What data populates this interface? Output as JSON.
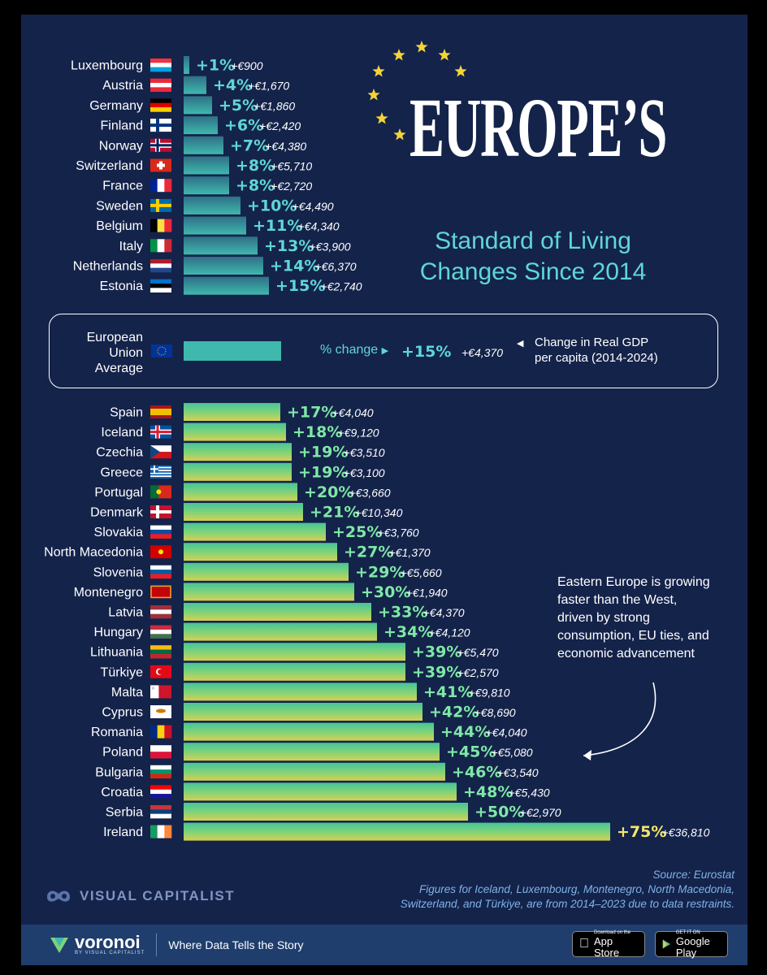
{
  "title": "EUROPE’S",
  "subtitle_line1": "Standard of Living",
  "subtitle_line2": "Changes Since 2014",
  "legend": {
    "pct_label": "% change",
    "desc_line1": "Change in Real GDP",
    "desc_line2": "per capita (2014-2024)"
  },
  "annotation": {
    "line1": "Eastern Europe is growing",
    "line2": "faster than the West,",
    "line3": "driven by strong",
    "line4": "consumption, EU ties, and",
    "line5": "economic advancement"
  },
  "source": {
    "line1": "Source: Eurostat",
    "line2": "Figures for Iceland, Luxembourg, Montenegro, North Macedonia,",
    "line3": "Switzerland, and Türkiye, are from 2014–2023 due to data restraints."
  },
  "brand": "VISUAL CAPITALIST",
  "footer": {
    "voronoi": "voronoi",
    "voronoi_sub": "BY VISUAL CAPITALIST",
    "tagline": "Where Data Tells the Story",
    "app_store_small": "Download on the",
    "app_store": "App Store",
    "google_small": "GET IT ON",
    "google": "Google Play"
  },
  "colors": {
    "background": "#14234a",
    "accent": "#5fd7d6",
    "pct_text": "#7ee8a6",
    "star": "#f2d43a"
  },
  "chart_data": {
    "type": "bar",
    "orientation": "horizontal",
    "measure": "% change",
    "secondary_measure": "Change in Real GDP per capita (2014-2024)",
    "eu_average": {
      "label_line1": "European",
      "label_line2": "Union",
      "label_line3": "Average",
      "pct": 15,
      "pct_label": "+15%",
      "abs_label": "+€4,370",
      "flag": "eu"
    },
    "rows": [
      {
        "country": "Luxembourg",
        "pct": 1,
        "pct_label": "+1%",
        "abs_label": "+€900",
        "flag": "lux"
      },
      {
        "country": "Austria",
        "pct": 4,
        "pct_label": "+4%",
        "abs_label": "+€1,670",
        "flag": "aut"
      },
      {
        "country": "Germany",
        "pct": 5,
        "pct_label": "+5%",
        "abs_label": "+€1,860",
        "flag": "deu"
      },
      {
        "country": "Finland",
        "pct": 6,
        "pct_label": "+6%",
        "abs_label": "+€2,420",
        "flag": "fin"
      },
      {
        "country": "Norway",
        "pct": 7,
        "pct_label": "+7%",
        "abs_label": "+€4,380",
        "flag": "nor"
      },
      {
        "country": "Switzerland",
        "pct": 8,
        "pct_label": "+8%",
        "abs_label": "+€5,710",
        "flag": "che"
      },
      {
        "country": "France",
        "pct": 8,
        "pct_label": "+8%",
        "abs_label": "+€2,720",
        "flag": "fra"
      },
      {
        "country": "Sweden",
        "pct": 10,
        "pct_label": "+10%",
        "abs_label": "+€4,490",
        "flag": "swe"
      },
      {
        "country": "Belgium",
        "pct": 11,
        "pct_label": "+11%",
        "abs_label": "+€4,340",
        "flag": "bel"
      },
      {
        "country": "Italy",
        "pct": 13,
        "pct_label": "+13%",
        "abs_label": "+€3,900",
        "flag": "ita"
      },
      {
        "country": "Netherlands",
        "pct": 14,
        "pct_label": "+14%",
        "abs_label": "+€6,370",
        "flag": "nld"
      },
      {
        "country": "Estonia",
        "pct": 15,
        "pct_label": "+15%",
        "abs_label": "+€2,740",
        "flag": "est"
      },
      {
        "country": "Spain",
        "pct": 17,
        "pct_label": "+17%",
        "abs_label": "+€4,040",
        "flag": "esp"
      },
      {
        "country": "Iceland",
        "pct": 18,
        "pct_label": "+18%",
        "abs_label": "+€9,120",
        "flag": "isl"
      },
      {
        "country": "Czechia",
        "pct": 19,
        "pct_label": "+19%",
        "abs_label": "+€3,510",
        "flag": "cze"
      },
      {
        "country": "Greece",
        "pct": 19,
        "pct_label": "+19%",
        "abs_label": "+€3,100",
        "flag": "grc"
      },
      {
        "country": "Portugal",
        "pct": 20,
        "pct_label": "+20%",
        "abs_label": "+€3,660",
        "flag": "prt"
      },
      {
        "country": "Denmark",
        "pct": 21,
        "pct_label": "+21%",
        "abs_label": "+€10,340",
        "flag": "dnk"
      },
      {
        "country": "Slovakia",
        "pct": 25,
        "pct_label": "+25%",
        "abs_label": "+€3,760",
        "flag": "svk"
      },
      {
        "country": "North Macedonia",
        "pct": 27,
        "pct_label": "+27%",
        "abs_label": "+€1,370",
        "flag": "mkd"
      },
      {
        "country": "Slovenia",
        "pct": 29,
        "pct_label": "+29%",
        "abs_label": "+€5,660",
        "flag": "svn"
      },
      {
        "country": "Montenegro",
        "pct": 30,
        "pct_label": "+30%",
        "abs_label": "+€1,940",
        "flag": "mne"
      },
      {
        "country": "Latvia",
        "pct": 33,
        "pct_label": "+33%",
        "abs_label": "+€4,370",
        "flag": "lva"
      },
      {
        "country": "Hungary",
        "pct": 34,
        "pct_label": "+34%",
        "abs_label": "+€4,120",
        "flag": "hun"
      },
      {
        "country": "Lithuania",
        "pct": 39,
        "pct_label": "+39%",
        "abs_label": "+€5,470",
        "flag": "ltu"
      },
      {
        "country": "Türkiye",
        "pct": 39,
        "pct_label": "+39%",
        "abs_label": "+€2,570",
        "flag": "tur"
      },
      {
        "country": "Malta",
        "pct": 41,
        "pct_label": "+41%",
        "abs_label": "+€9,810",
        "flag": "mlt"
      },
      {
        "country": "Cyprus",
        "pct": 42,
        "pct_label": "+42%",
        "abs_label": "+€8,690",
        "flag": "cyp"
      },
      {
        "country": "Romania",
        "pct": 44,
        "pct_label": "+44%",
        "abs_label": "+€4,040",
        "flag": "rou"
      },
      {
        "country": "Poland",
        "pct": 45,
        "pct_label": "+45%",
        "abs_label": "+€5,080",
        "flag": "pol"
      },
      {
        "country": "Bulgaria",
        "pct": 46,
        "pct_label": "+46%",
        "abs_label": "+€3,540",
        "flag": "bgr"
      },
      {
        "country": "Croatia",
        "pct": 48,
        "pct_label": "+48%",
        "abs_label": "+€5,430",
        "flag": "hrv"
      },
      {
        "country": "Serbia",
        "pct": 50,
        "pct_label": "+50%",
        "abs_label": "+€2,970",
        "flag": "srb"
      },
      {
        "country": "Ireland",
        "pct": 75,
        "pct_label": "+75%",
        "abs_label": "+€36,810",
        "flag": "irl"
      }
    ]
  }
}
